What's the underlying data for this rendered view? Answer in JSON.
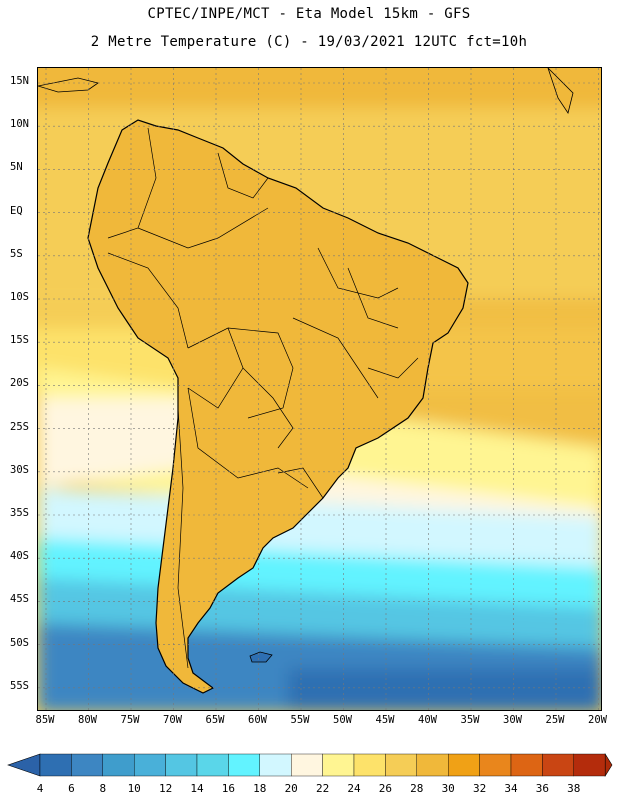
{
  "title": {
    "line1": "CPTEC/INPE/MCT -  Eta Model 15km - GFS",
    "line2": "2 Metre Temperature (C) - 19/03/2021 12UTC fct=10h"
  },
  "map": {
    "region": "South America",
    "variable": "2 Metre Temperature",
    "units": "C",
    "lat_ticks": [
      "15N",
      "10N",
      "5N",
      "EQ",
      "5S",
      "10S",
      "15S",
      "20S",
      "25S",
      "30S",
      "35S",
      "40S",
      "45S",
      "50S",
      "55S"
    ],
    "lon_ticks": [
      "85W",
      "80W",
      "75W",
      "70W",
      "65W",
      "60W",
      "55W",
      "50W",
      "45W",
      "40W",
      "35W",
      "30W",
      "25W",
      "20W"
    ]
  },
  "colorbar": {
    "labels": [
      "4",
      "6",
      "8",
      "10",
      "12",
      "14",
      "16",
      "18",
      "20",
      "22",
      "24",
      "26",
      "28",
      "30",
      "32",
      "34",
      "36",
      "38"
    ],
    "colors": [
      "#2e6fb2",
      "#3d86c2",
      "#3f9dcc",
      "#49b0d9",
      "#54c6e3",
      "#5ad6e9",
      "#62f3ff",
      "#d2f7ff",
      "#fff6e0",
      "#fff592",
      "#fde26a",
      "#f5cd56",
      "#f0b83a",
      "#f0a116",
      "#e9861c",
      "#dd6514",
      "#c94513",
      "#b42c0c"
    ],
    "low_color": "#2b62a8",
    "high_color": "#ad2a08"
  }
}
